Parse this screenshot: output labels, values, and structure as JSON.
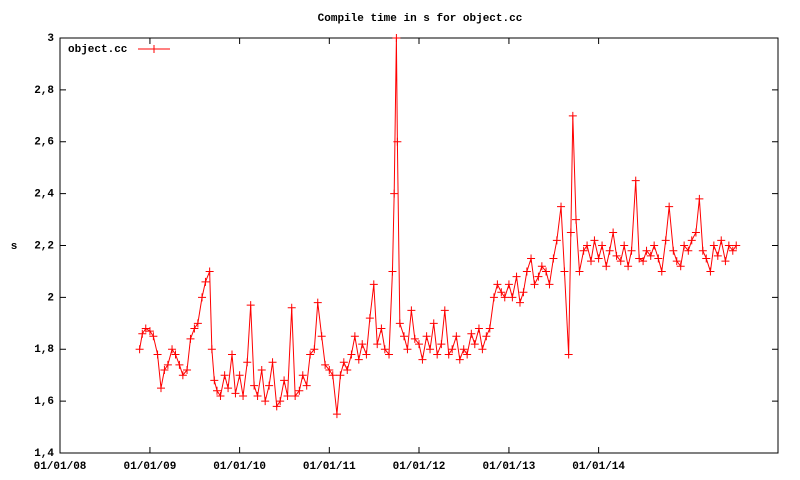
{
  "chart_data": {
    "type": "line",
    "title": "Compile time in s for object.cc",
    "y_label": "s",
    "color": "#ff0000",
    "legend": "top-left",
    "markers": "+",
    "xlim": [
      "2008-01-01",
      "2016-01-01"
    ],
    "xticks": [
      {
        "value": "2008-01-01",
        "label": "01/01/08"
      },
      {
        "value": "2009-01-01",
        "label": "01/01/09"
      },
      {
        "value": "2010-01-01",
        "label": "01/01/10"
      },
      {
        "value": "2011-01-01",
        "label": "01/01/11"
      },
      {
        "value": "2012-01-01",
        "label": "01/01/12"
      },
      {
        "value": "2013-01-01",
        "label": "01/01/13"
      },
      {
        "value": "2014-01-01",
        "label": "01/01/14"
      }
    ],
    "ylim": [
      1.4,
      3
    ],
    "yticks": [
      {
        "value": 1.4,
        "label": "1,4"
      },
      {
        "value": 1.6,
        "label": "1,6"
      },
      {
        "value": 1.8,
        "label": "1,8"
      },
      2,
      {
        "value": 2.2,
        "label": "2,2"
      },
      {
        "value": 2.4,
        "label": "2,4"
      },
      {
        "value": 2.6,
        "label": "2,6"
      },
      {
        "value": 2.8,
        "label": "2,8"
      },
      3
    ],
    "x": [
      "2008-11-20",
      "2008-12-01",
      "2008-12-15",
      "2009-01-01",
      "2009-01-15",
      "2009-02-01",
      "2009-02-15",
      "2009-03-01",
      "2009-03-15",
      "2009-04-01",
      "2009-04-15",
      "2009-05-01",
      "2009-05-15",
      "2009-06-01",
      "2009-06-15",
      "2009-07-01",
      "2009-07-15",
      "2009-08-01",
      "2009-08-15",
      "2009-09-01",
      "2009-09-10",
      "2009-09-20",
      "2009-10-01",
      "2009-10-15",
      "2009-11-01",
      "2009-11-15",
      "2009-12-01",
      "2009-12-15",
      "2010-01-01",
      "2010-01-15",
      "2010-02-01",
      "2010-02-15",
      "2010-03-01",
      "2010-03-15",
      "2010-04-01",
      "2010-04-15",
      "2010-05-01",
      "2010-05-15",
      "2010-06-01",
      "2010-06-15",
      "2010-07-01",
      "2010-07-15",
      "2010-08-01",
      "2010-08-15",
      "2010-09-01",
      "2010-09-15",
      "2010-10-01",
      "2010-10-15",
      "2010-11-01",
      "2010-11-15",
      "2010-12-01",
      "2010-12-15",
      "2011-01-01",
      "2011-01-15",
      "2011-02-01",
      "2011-02-15",
      "2011-03-01",
      "2011-03-15",
      "2011-04-01",
      "2011-04-15",
      "2011-05-01",
      "2011-05-15",
      "2011-06-01",
      "2011-06-15",
      "2011-07-01",
      "2011-07-15",
      "2011-08-01",
      "2011-08-15",
      "2011-09-01",
      "2011-09-15",
      "2011-09-22",
      "2011-10-01",
      "2011-10-05",
      "2011-10-15",
      "2011-11-01",
      "2011-11-15",
      "2011-12-01",
      "2011-12-15",
      "2012-01-01",
      "2012-01-15",
      "2012-02-01",
      "2012-02-15",
      "2012-03-01",
      "2012-03-15",
      "2012-04-01",
      "2012-04-15",
      "2012-05-01",
      "2012-05-15",
      "2012-06-01",
      "2012-06-15",
      "2012-07-01",
      "2012-07-15",
      "2012-08-01",
      "2012-08-15",
      "2012-09-01",
      "2012-09-15",
      "2012-10-01",
      "2012-10-15",
      "2012-11-01",
      "2012-11-15",
      "2012-12-01",
      "2012-12-15",
      "2013-01-01",
      "2013-01-15",
      "2013-02-01",
      "2013-02-15",
      "2013-03-01",
      "2013-03-15",
      "2013-04-01",
      "2013-04-15",
      "2013-05-01",
      "2013-05-15",
      "2013-06-01",
      "2013-06-15",
      "2013-07-01",
      "2013-07-15",
      "2013-08-01",
      "2013-08-15",
      "2013-09-01",
      "2013-09-10",
      "2013-09-18",
      "2013-10-01",
      "2013-10-15",
      "2013-11-01",
      "2013-11-15",
      "2013-12-01",
      "2013-12-15",
      "2014-01-01",
      "2014-01-15",
      "2014-02-01",
      "2014-02-15",
      "2014-03-01",
      "2014-03-15",
      "2014-04-01",
      "2014-04-15",
      "2014-05-01",
      "2014-05-15",
      "2014-06-01",
      "2014-06-15",
      "2014-07-01",
      "2014-07-15",
      "2014-08-01",
      "2014-08-15",
      "2014-09-01",
      "2014-09-15",
      "2014-10-01",
      "2014-10-15",
      "2014-11-01",
      "2014-11-15",
      "2014-12-01",
      "2014-12-15",
      "2015-01-01",
      "2015-01-15",
      "2015-02-01",
      "2015-02-15",
      "2015-03-01",
      "2015-03-15",
      "2015-04-01",
      "2015-04-15",
      "2015-05-01",
      "2015-05-15",
      "2015-06-01",
      "2015-06-15",
      "2015-07-01",
      "2015-07-15"
    ],
    "series": [
      {
        "name": "object.cc",
        "color": "#ff0000",
        "values": [
          1.8,
          1.86,
          1.88,
          1.87,
          1.85,
          1.78,
          1.65,
          1.72,
          1.74,
          1.8,
          1.78,
          1.74,
          1.7,
          1.72,
          1.84,
          1.88,
          1.9,
          2.0,
          2.06,
          2.1,
          1.8,
          1.68,
          1.64,
          1.62,
          1.7,
          1.65,
          1.78,
          1.63,
          1.7,
          1.62,
          1.75,
          1.97,
          1.66,
          1.62,
          1.72,
          1.6,
          1.66,
          1.75,
          1.58,
          1.6,
          1.68,
          1.62,
          1.96,
          1.62,
          1.64,
          1.7,
          1.66,
          1.78,
          1.8,
          1.98,
          1.85,
          1.74,
          1.72,
          1.7,
          1.55,
          1.7,
          1.75,
          1.72,
          1.78,
          1.85,
          1.76,
          1.82,
          1.78,
          1.92,
          2.05,
          1.82,
          1.88,
          1.8,
          1.78,
          2.1,
          2.4,
          3.0,
          2.6,
          1.9,
          1.85,
          1.8,
          1.95,
          1.84,
          1.82,
          1.76,
          1.85,
          1.8,
          1.9,
          1.78,
          1.82,
          1.95,
          1.78,
          1.8,
          1.85,
          1.76,
          1.8,
          1.78,
          1.86,
          1.82,
          1.88,
          1.8,
          1.85,
          1.88,
          2.0,
          2.05,
          2.02,
          2.0,
          2.05,
          2.0,
          2.08,
          1.98,
          2.02,
          2.1,
          2.15,
          2.05,
          2.08,
          2.12,
          2.1,
          2.05,
          2.15,
          2.22,
          2.35,
          2.1,
          1.78,
          2.25,
          2.7,
          2.3,
          2.1,
          2.18,
          2.2,
          2.14,
          2.22,
          2.15,
          2.2,
          2.12,
          2.18,
          2.25,
          2.16,
          2.14,
          2.2,
          2.12,
          2.18,
          2.45,
          2.15,
          2.14,
          2.18,
          2.16,
          2.2,
          2.15,
          2.1,
          2.22,
          2.35,
          2.18,
          2.14,
          2.12,
          2.2,
          2.18,
          2.22,
          2.25,
          2.38,
          2.18,
          2.15,
          2.1,
          2.2,
          2.16,
          2.22,
          2.14,
          2.2,
          2.18,
          2.2
        ]
      }
    ]
  }
}
